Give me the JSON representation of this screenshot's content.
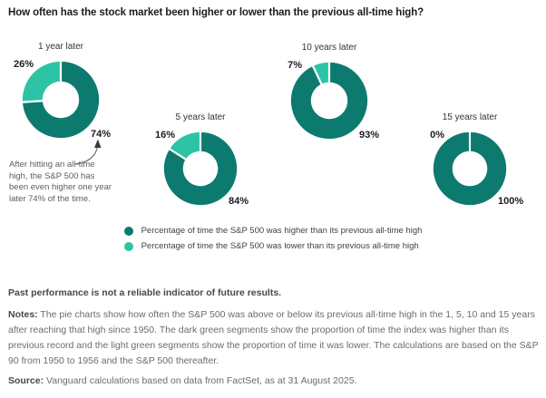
{
  "page": {
    "title": "How often has the stock market been higher or lower than the previous all-time high?"
  },
  "chart_data": {
    "type": "pie",
    "subtype": "donut",
    "unit": "%",
    "colors": {
      "higher": "#0D7A6F",
      "lower": "#2CC4A4"
    },
    "charts": [
      {
        "title": "1 year later",
        "higher_pct": 74,
        "lower_pct": 26,
        "higher_label": "74%",
        "lower_label": "26%"
      },
      {
        "title": "5 years later",
        "higher_pct": 84,
        "lower_pct": 16,
        "higher_label": "84%",
        "lower_label": "16%"
      },
      {
        "title": "10 years later",
        "higher_pct": 93,
        "lower_pct": 7,
        "higher_label": "93%",
        "lower_label": "7%"
      },
      {
        "title": "15 years later",
        "higher_pct": 100,
        "lower_pct": 0,
        "higher_label": "100%",
        "lower_label": "0%"
      }
    ],
    "legend": [
      {
        "color": "#0D7A6F",
        "label": "Percentage of time the S&P 500 was higher than its previous all-time high"
      },
      {
        "color": "#2CC4A4",
        "label": "Percentage of time the S&P 500 was lower than its previous all-time high"
      }
    ],
    "annotation": "After hitting an all-time high, the S&P 500 has been even higher one year later 74% of the time."
  },
  "footer": {
    "disclaimer": "Past performance is not a reliable indicator of future results.",
    "notes_label": "Notes:",
    "notes": "The pie charts show how often the S&P 500 was above or below its previous all-time high in the 1, 5, 10 and 15 years after reaching that high since 1950. The dark green segments show the proportion of time the index was higher than its previous record and the light green segments show the proportion of time it was lower. The calculations are based on the S&P 90 from 1950 to 1956 and the S&P 500 thereafter.",
    "source_label": "Source:",
    "source": "Vanguard calculations based on data from FactSet, as at 31 August 2025."
  }
}
